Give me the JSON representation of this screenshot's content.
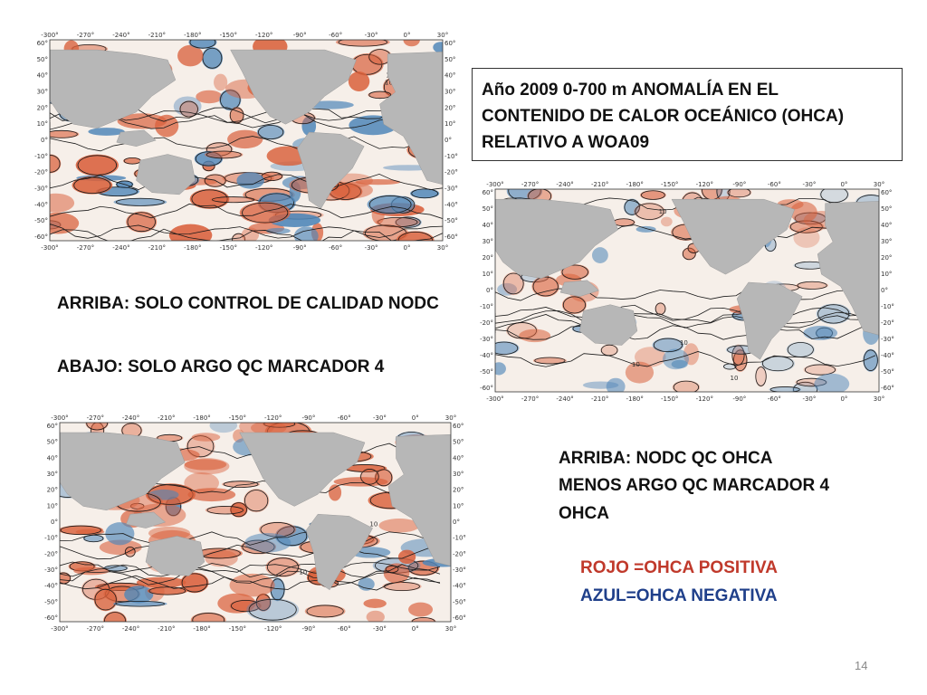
{
  "slide": {
    "title_lines": [
      "Año 2009 0-700 m ANOMALÍA EN EL",
      "CONTENIDO DE CALOR OCEÁNICO (OHCA)",
      "RELATIVO A WOA09"
    ],
    "label_top": "ARRIBA: SOLO CONTROL DE CALIDAD NODC",
    "label_bottom": "ABAJO: SOLO ARGO QC MARCADOR 4",
    "diff_lines": [
      "ARRIBA: NODC QC OHCA",
      "MENOS ARGO QC MARCADOR 4",
      "OHCA"
    ],
    "legend_red": "ROJO =OHCA POSITIVA",
    "legend_blue": "AZUL=OHCA NEGATIVA",
    "page_number": "14"
  },
  "map_axes": {
    "lon_ticks": [
      "-300°",
      "-270°",
      "-240°",
      "-210°",
      "-180°",
      "-150°",
      "-120°",
      "-90°",
      "-60°",
      "-30°",
      "0°",
      "30°"
    ],
    "lat_ticks": [
      "60°",
      "50°",
      "40°",
      "30°",
      "20°",
      "10°",
      "0°",
      "-10°",
      "-20°",
      "-30°",
      "-40°",
      "-50°",
      "-60°"
    ],
    "contour_label": "10"
  },
  "maps": [
    {
      "id": "nodc",
      "tint": "warm"
    },
    {
      "id": "difference",
      "tint": "neutral"
    },
    {
      "id": "argo",
      "tint": "warm"
    }
  ],
  "colors": {
    "positive": "#d9603b",
    "negative": "#4f86b8",
    "land": "#b7b7b7",
    "ocean": "#f6efe9"
  }
}
